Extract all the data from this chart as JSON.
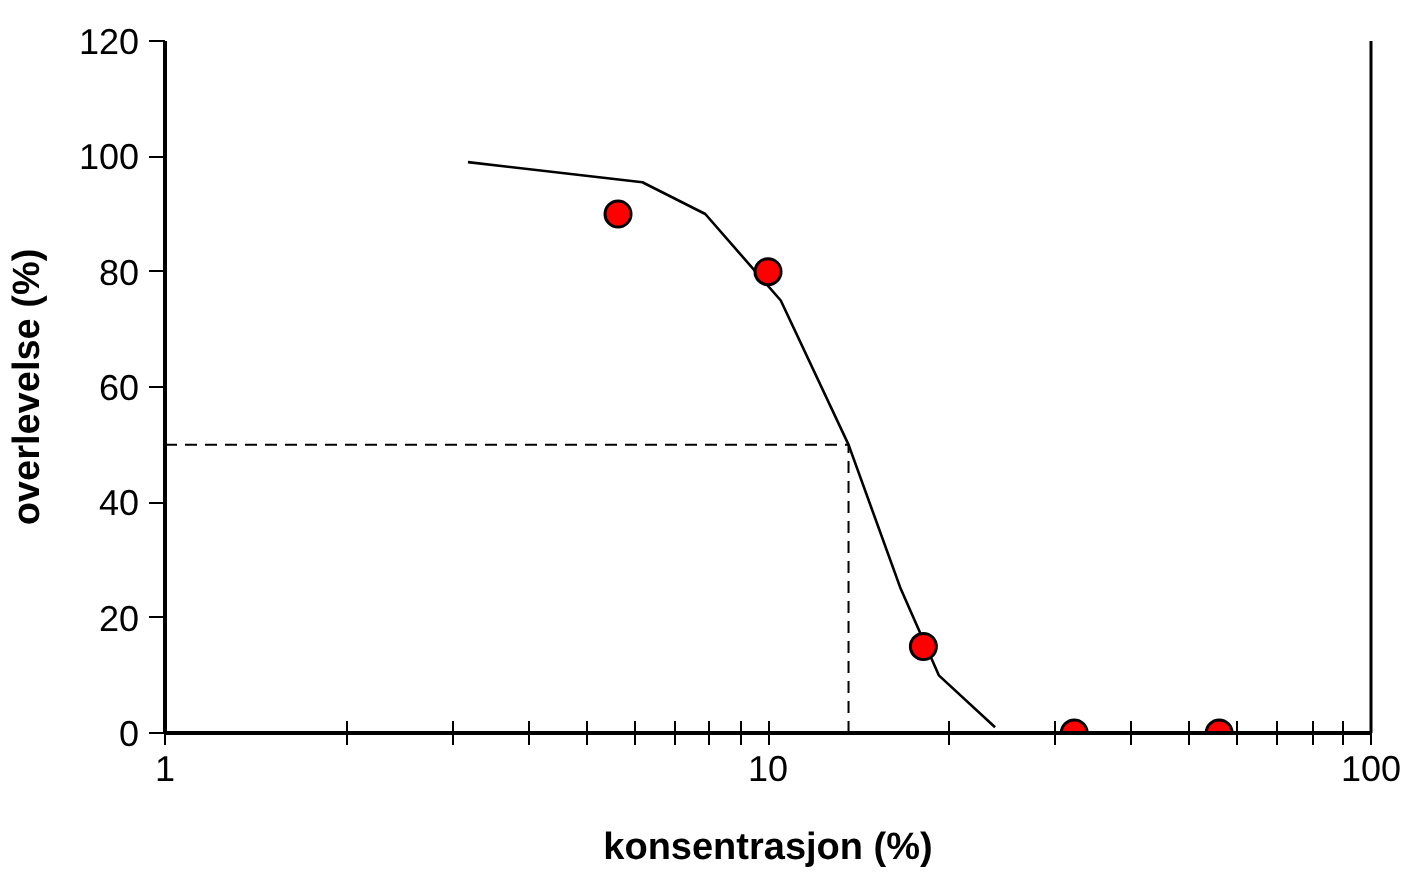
{
  "chart_data": {
    "type": "scatter",
    "xlabel": "konsentrasjon (%)",
    "ylabel": "overlevelse (%)",
    "log": "x",
    "xlim": [
      1,
      100
    ],
    "ylim": [
      0,
      120
    ],
    "xticks": [
      1,
      {
        "value": 2,
        "label": null
      },
      {
        "value": 3,
        "label": null
      },
      {
        "value": 4,
        "label": null
      },
      {
        "value": 5,
        "label": null
      },
      {
        "value": 6,
        "label": null
      },
      {
        "value": 7,
        "label": null
      },
      {
        "value": 8,
        "label": null
      },
      {
        "value": 9,
        "label": null
      },
      10,
      {
        "value": 20,
        "label": null
      },
      {
        "value": 30,
        "label": null
      },
      {
        "value": 40,
        "label": null
      },
      {
        "value": 50,
        "label": null
      },
      {
        "value": 60,
        "label": null
      },
      {
        "value": 70,
        "label": null
      },
      {
        "value": 80,
        "label": null
      },
      {
        "value": 90,
        "label": null
      },
      100
    ],
    "yticks": [
      0,
      20,
      40,
      60,
      80,
      100,
      120
    ],
    "grid": false,
    "ref_lines": [
      {
        "axis": "y",
        "value": 50,
        "line_style": "dashed",
        "color": "#000000"
      },
      {
        "axis": "x",
        "value": 13.6,
        "line_style": "dashed",
        "color": "#000000"
      }
    ],
    "series": [
      {
        "type": "line",
        "color": "#000000",
        "marker": "none",
        "line_style": "solid",
        "x": [
          3.18,
          6.19,
          7.87,
          10.5,
          13.6,
          16.6,
          19.2,
          23.8
        ],
        "values": [
          99,
          95.5,
          90,
          75,
          50,
          25,
          10,
          1
        ]
      },
      {
        "color": "#ff0000",
        "marker": "circle",
        "x": [
          5.64,
          10,
          18.1,
          32.2,
          56
        ],
        "values": [
          90,
          80,
          15,
          0,
          0
        ]
      }
    ]
  }
}
